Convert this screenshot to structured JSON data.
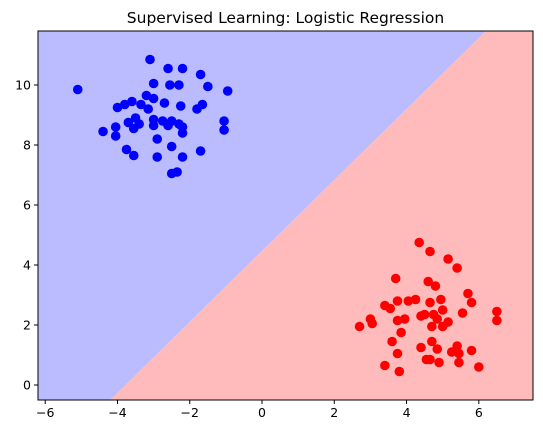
{
  "chart_data": {
    "type": "scatter",
    "title": "Supervised Learning: Logistic Regression",
    "xlabel": "",
    "ylabel": "",
    "xlim": [
      -6.2,
      7.5
    ],
    "ylim": [
      -0.5,
      11.8
    ],
    "xticks": [
      -6,
      -4,
      -2,
      0,
      2,
      4,
      6
    ],
    "yticks": [
      0,
      2,
      4,
      6,
      8,
      10
    ],
    "grid": false,
    "decision_boundary": {
      "description": "linear decision boundary separating two shaded regions",
      "points": [
        [
          -4.2,
          -0.5
        ],
        [
          6.2,
          11.8
        ]
      ],
      "region_upper_left_color": "#bbbbff",
      "region_lower_right_color": "#ffbbbb"
    },
    "series": [
      {
        "color": "#0000ff",
        "points": [
          [
            -5.1,
            9.85
          ],
          [
            -3.1,
            10.85
          ],
          [
            -2.6,
            10.55
          ],
          [
            -2.2,
            10.55
          ],
          [
            -1.7,
            10.35
          ],
          [
            -3.0,
            10.05
          ],
          [
            -2.55,
            10.0
          ],
          [
            -2.3,
            10.0
          ],
          [
            -1.5,
            9.95
          ],
          [
            -0.95,
            9.8
          ],
          [
            -3.2,
            9.65
          ],
          [
            -3.0,
            9.55
          ],
          [
            -3.6,
            9.45
          ],
          [
            -3.8,
            9.35
          ],
          [
            -4.0,
            9.25
          ],
          [
            -3.35,
            9.35
          ],
          [
            -2.7,
            9.4
          ],
          [
            -1.65,
            9.35
          ],
          [
            -2.25,
            9.3
          ],
          [
            -3.15,
            9.2
          ],
          [
            -1.8,
            9.2
          ],
          [
            -3.5,
            8.9
          ],
          [
            -3.0,
            8.85
          ],
          [
            -2.75,
            8.8
          ],
          [
            -2.5,
            8.8
          ],
          [
            -2.3,
            8.7
          ],
          [
            -3.4,
            8.7
          ],
          [
            -3.7,
            8.75
          ],
          [
            -4.05,
            8.6
          ],
          [
            -4.4,
            8.45
          ],
          [
            -3.0,
            8.65
          ],
          [
            -3.55,
            8.55
          ],
          [
            -2.6,
            8.65
          ],
          [
            -2.2,
            8.6
          ],
          [
            -2.2,
            8.4
          ],
          [
            -1.05,
            8.8
          ],
          [
            -1.05,
            8.5
          ],
          [
            -4.05,
            8.3
          ],
          [
            -2.9,
            8.2
          ],
          [
            -3.75,
            7.85
          ],
          [
            -3.55,
            7.65
          ],
          [
            -2.9,
            7.6
          ],
          [
            -2.5,
            7.95
          ],
          [
            -1.7,
            7.8
          ],
          [
            -2.2,
            7.6
          ],
          [
            -2.35,
            7.1
          ],
          [
            -2.5,
            7.05
          ]
        ]
      },
      {
        "color": "#ff0000",
        "points": [
          [
            4.35,
            4.75
          ],
          [
            4.65,
            4.45
          ],
          [
            5.15,
            4.2
          ],
          [
            5.4,
            3.9
          ],
          [
            3.7,
            3.55
          ],
          [
            4.6,
            3.45
          ],
          [
            4.8,
            3.3
          ],
          [
            5.7,
            3.05
          ],
          [
            4.25,
            2.85
          ],
          [
            3.4,
            2.65
          ],
          [
            3.75,
            2.8
          ],
          [
            4.05,
            2.8
          ],
          [
            4.65,
            2.75
          ],
          [
            4.95,
            2.85
          ],
          [
            5.8,
            2.75
          ],
          [
            3.55,
            2.55
          ],
          [
            4.5,
            2.35
          ],
          [
            4.75,
            2.35
          ],
          [
            5.0,
            2.5
          ],
          [
            5.55,
            2.4
          ],
          [
            6.5,
            2.45
          ],
          [
            4.4,
            2.3
          ],
          [
            4.85,
            2.2
          ],
          [
            5.15,
            2.1
          ],
          [
            3.75,
            2.15
          ],
          [
            3.95,
            2.2
          ],
          [
            3.0,
            2.2
          ],
          [
            3.05,
            2.05
          ],
          [
            2.7,
            1.95
          ],
          [
            6.5,
            2.15
          ],
          [
            4.7,
            1.95
          ],
          [
            5.0,
            1.95
          ],
          [
            3.85,
            1.75
          ],
          [
            3.6,
            1.45
          ],
          [
            4.7,
            1.45
          ],
          [
            4.4,
            1.25
          ],
          [
            5.4,
            1.3
          ],
          [
            4.85,
            1.2
          ],
          [
            5.25,
            1.1
          ],
          [
            5.45,
            1.05
          ],
          [
            5.8,
            1.15
          ],
          [
            3.75,
            1.05
          ],
          [
            4.55,
            0.85
          ],
          [
            4.65,
            0.85
          ],
          [
            4.9,
            0.75
          ],
          [
            5.45,
            0.75
          ],
          [
            3.4,
            0.65
          ],
          [
            3.8,
            0.45
          ],
          [
            6.0,
            0.6
          ]
        ]
      }
    ]
  }
}
